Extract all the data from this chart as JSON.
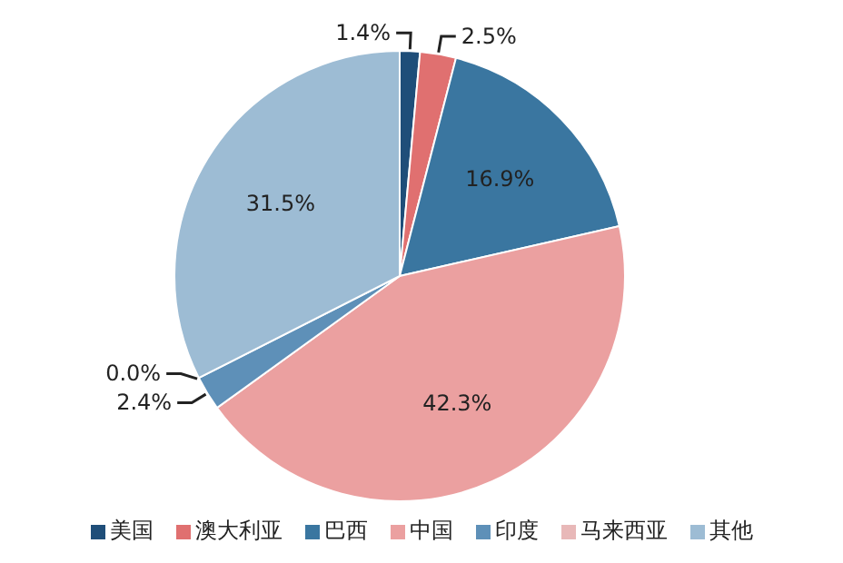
{
  "chart_data": {
    "type": "pie",
    "categories": [
      "美国",
      "澳大利亚",
      "巴西",
      "中国",
      "印度",
      "马来西亚",
      "其他"
    ],
    "values": [
      1.4,
      2.5,
      16.9,
      42.3,
      2.4,
      0.0,
      31.5
    ],
    "value_labels": [
      "1.4%",
      "2.5%",
      "16.9%",
      "42.3%",
      "2.4%",
      "0.0%",
      "31.5%"
    ],
    "colors": [
      "#1f4e79",
      "#e07070",
      "#3a76a0",
      "#eba0a0",
      "#5e90b8",
      "#e8b8b8",
      "#9dbcd4"
    ],
    "legend": "bottom"
  }
}
